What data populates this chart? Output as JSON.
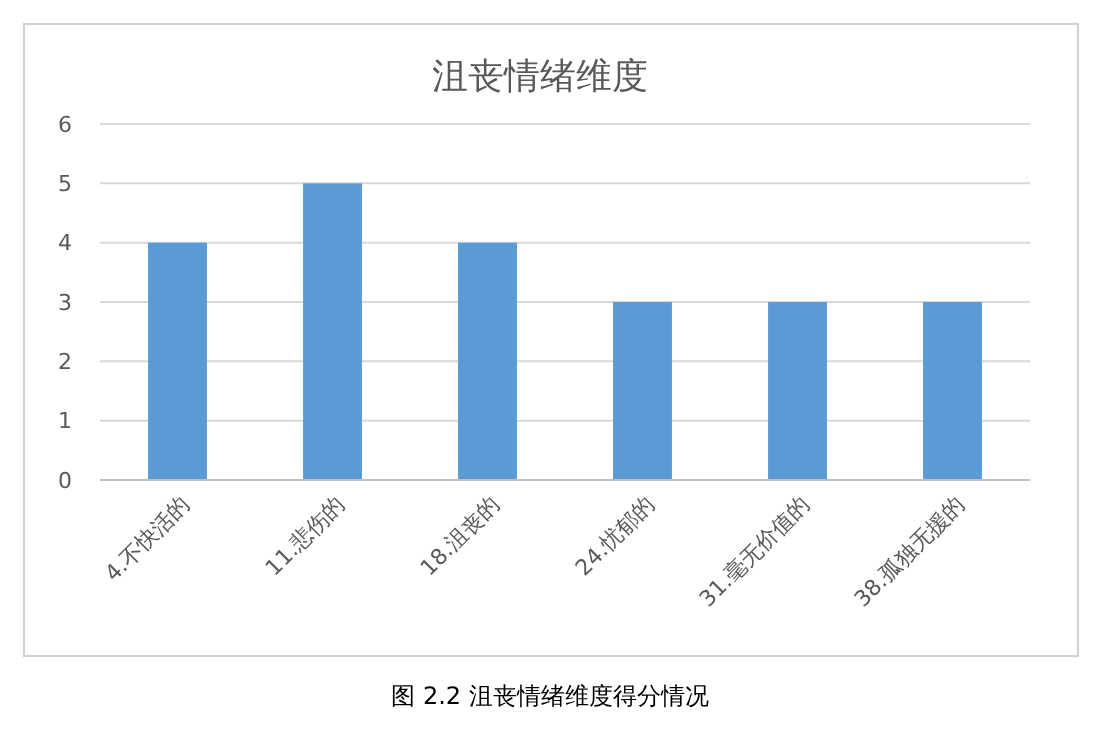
{
  "chart_data": {
    "type": "bar",
    "title": "沮丧情绪维度",
    "categories": [
      "4.不快活的",
      "11.悲伤的",
      "18.沮丧的",
      "24.忧郁的",
      "31.毫无价值的",
      "38.孤独无援的"
    ],
    "series": [
      {
        "color": "#5b9bd5",
        "values": [
          4,
          5,
          4,
          3,
          3,
          3
        ]
      }
    ],
    "ylim": [
      0,
      6
    ],
    "yticks": [
      0,
      1,
      2,
      3,
      4,
      5,
      6
    ],
    "grid": "y",
    "annotations": [
      "图 2.2 沮丧情绪维度得分情况"
    ]
  }
}
